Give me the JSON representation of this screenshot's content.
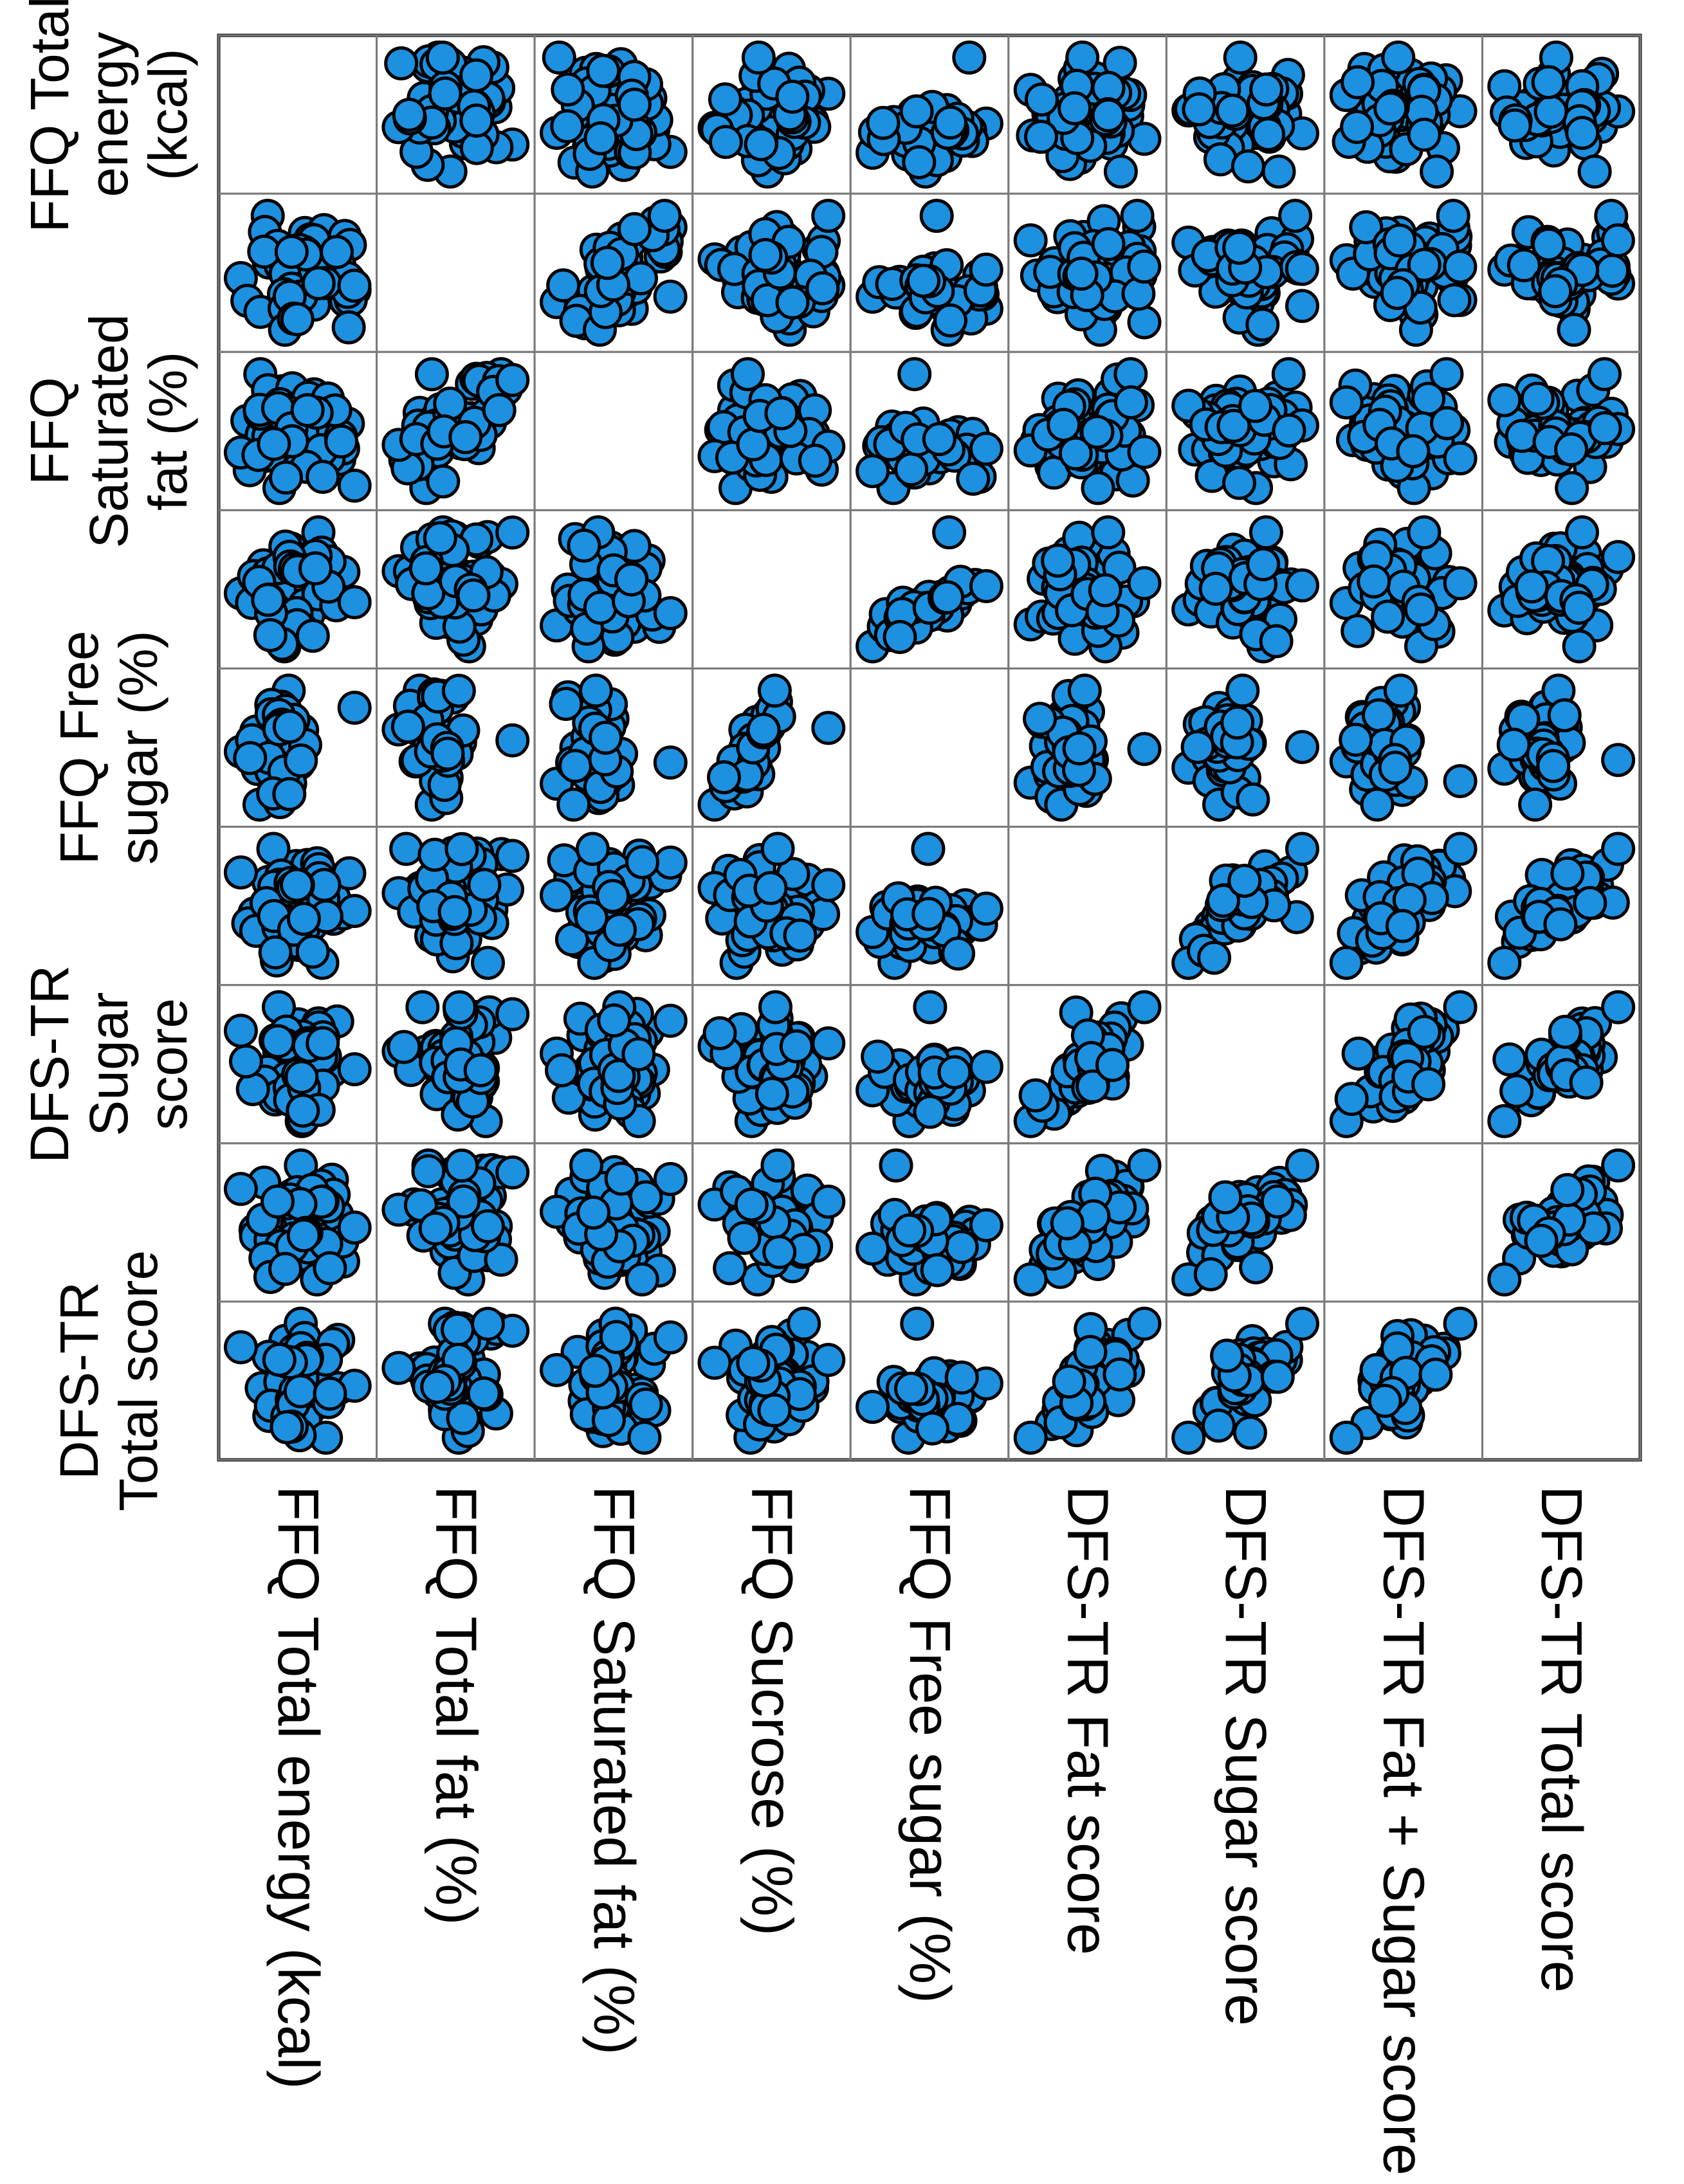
{
  "chart_data": {
    "type": "scatter",
    "title": "",
    "layout": "scatterplot-matrix",
    "rotation": "page rotated 90 degrees clockwise",
    "grid": true,
    "diagonal": "empty",
    "variables": [
      "FFQ Total energy (kcal)",
      "FFQ Total fat (%)",
      "FFQ Saturated fat (%)",
      "FFQ Sucrose (%)",
      "FFQ Free sugar (%)",
      "DFS-TR Fat score",
      "DFS-TR Sugar score",
      "DFS-TR Fat + Sugar score",
      "DFS-TR Total score"
    ],
    "row_labels": [
      [
        "FFQ Total",
        "energy",
        "(kcal)"
      ],
      [],
      [
        "FFQ",
        "Saturated",
        "fat (%)"
      ],
      [],
      [
        "FFQ Free",
        "sugar (%)"
      ],
      [],
      [
        "DFS-TR",
        "Sugar",
        "score"
      ],
      [],
      [
        "DFS-TR",
        "Total score"
      ]
    ],
    "column_labels": [
      "FFQ Total energy (kcal)",
      "FFQ Total fat (%)",
      "FFQ Saturated fat (%)",
      "FFQ Sucrose (%)",
      "FFQ Free sugar (%)",
      "DFS-TR Fat score",
      "DFS-TR Sugar score",
      "DFS-TR Fat + Sugar score",
      "DFS-TR Total score"
    ],
    "relationship_matrix": [
      [
        0,
        0.1,
        0.1,
        0.1,
        0.1,
        0.1,
        0.1,
        0.1,
        0.15
      ],
      [
        0.1,
        0,
        0.8,
        0.1,
        0.1,
        0.1,
        0.1,
        0.1,
        0.2
      ],
      [
        0.1,
        0.8,
        0,
        0.1,
        0.1,
        0.1,
        0.1,
        0.1,
        0.2
      ],
      [
        0.1,
        0.1,
        0.1,
        0,
        0.8,
        0.1,
        0.1,
        0.15,
        0.2
      ],
      [
        0.1,
        0.1,
        0.1,
        0.8,
        0,
        0.1,
        0.1,
        0.15,
        0.2
      ],
      [
        0.1,
        0.1,
        0.1,
        0.1,
        0.1,
        0,
        0.4,
        0.75,
        0.8
      ],
      [
        0.1,
        0.1,
        0.1,
        0.1,
        0.1,
        0.4,
        0,
        0.75,
        0.8
      ],
      [
        0.1,
        0.1,
        0.1,
        0.15,
        0.15,
        0.75,
        0.75,
        0,
        0.9
      ],
      [
        0.15,
        0.2,
        0.2,
        0.2,
        0.2,
        0.8,
        0.8,
        0.9,
        0
      ]
    ],
    "outlier_variable": "FFQ Free sugar (%)",
    "points_per_panel": 55
  },
  "colors": {
    "point_fill": "#1e90e0",
    "point_stroke": "#000000",
    "grid": "#7a7a7a",
    "frame": "#000000",
    "background": "#ffffff"
  }
}
